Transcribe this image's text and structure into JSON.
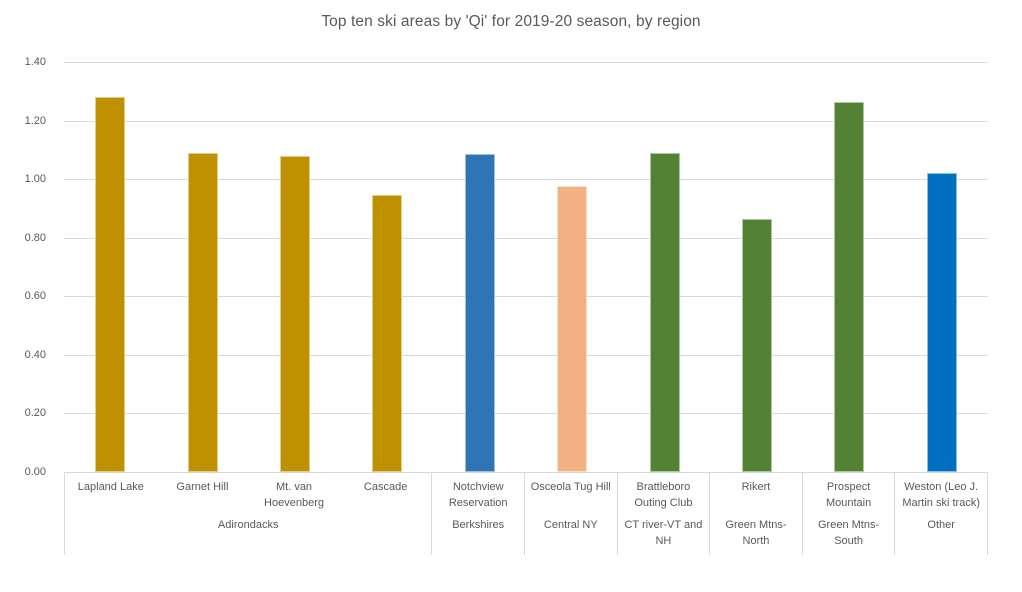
{
  "chart_data": {
    "type": "bar",
    "title": "Top ten ski areas by 'Qi' for 2019-20 season, by region",
    "xlabel": "",
    "ylabel": "",
    "ylim": [
      0,
      1.4
    ],
    "ytick_step": 0.2,
    "grid": true,
    "legend_position": "none",
    "gridline_color": "#D9D9D9",
    "axis_text_color": "#595959",
    "yticks": [
      {
        "label": "0.00",
        "value": 0.0
      },
      {
        "label": "0.20",
        "value": 0.2
      },
      {
        "label": "0.40",
        "value": 0.4
      },
      {
        "label": "0.60",
        "value": 0.6
      },
      {
        "label": "0.80",
        "value": 0.8
      },
      {
        "label": "1.00",
        "value": 1.0
      },
      {
        "label": "1.20",
        "value": 1.2
      },
      {
        "label": "1.40",
        "value": 1.4
      }
    ],
    "categories": [
      "Lapland Lake",
      "Garnet Hill",
      "Mt. van Hoevenberg",
      "Cascade",
      "Notchview Reservation",
      "Osceola Tug Hill",
      "Brattleboro Outing Club",
      "Rikert",
      "Prospect Mountain",
      "Weston (Leo J. Martin ski track)"
    ],
    "values": [
      1.28,
      1.09,
      1.08,
      0.945,
      1.085,
      0.975,
      1.09,
      0.865,
      1.265,
      1.02
    ],
    "groups": [
      {
        "region": "Adirondacks",
        "color": "#BF9000",
        "bars": [
          {
            "label": "Lapland Lake",
            "value": 1.28
          },
          {
            "label": "Garnet Hill",
            "value": 1.09
          },
          {
            "label": "Mt. van Hoevenberg",
            "value": 1.08
          },
          {
            "label": "Cascade",
            "value": 0.945
          }
        ]
      },
      {
        "region": "Berkshires",
        "color": "#2E75B6",
        "bars": [
          {
            "label": "Notchview Reservation",
            "value": 1.085
          }
        ]
      },
      {
        "region": "Central NY",
        "color": "#F4B183",
        "bars": [
          {
            "label": "Osceola Tug Hill",
            "value": 0.975
          }
        ]
      },
      {
        "region": "CT river-VT and NH",
        "color": "#548235",
        "bars": [
          {
            "label": "Brattleboro Outing Club",
            "value": 1.09
          }
        ]
      },
      {
        "region": "Green Mtns-North",
        "color": "#548235",
        "bars": [
          {
            "label": "Rikert",
            "value": 0.865
          }
        ]
      },
      {
        "region": "Green Mtns-South",
        "color": "#548235",
        "bars": [
          {
            "label": "Prospect Mountain",
            "value": 1.265
          }
        ]
      },
      {
        "region": "Other",
        "color": "#0070C0",
        "bars": [
          {
            "label": "Weston (Leo J. Martin ski track)",
            "value": 1.02
          }
        ]
      }
    ]
  }
}
